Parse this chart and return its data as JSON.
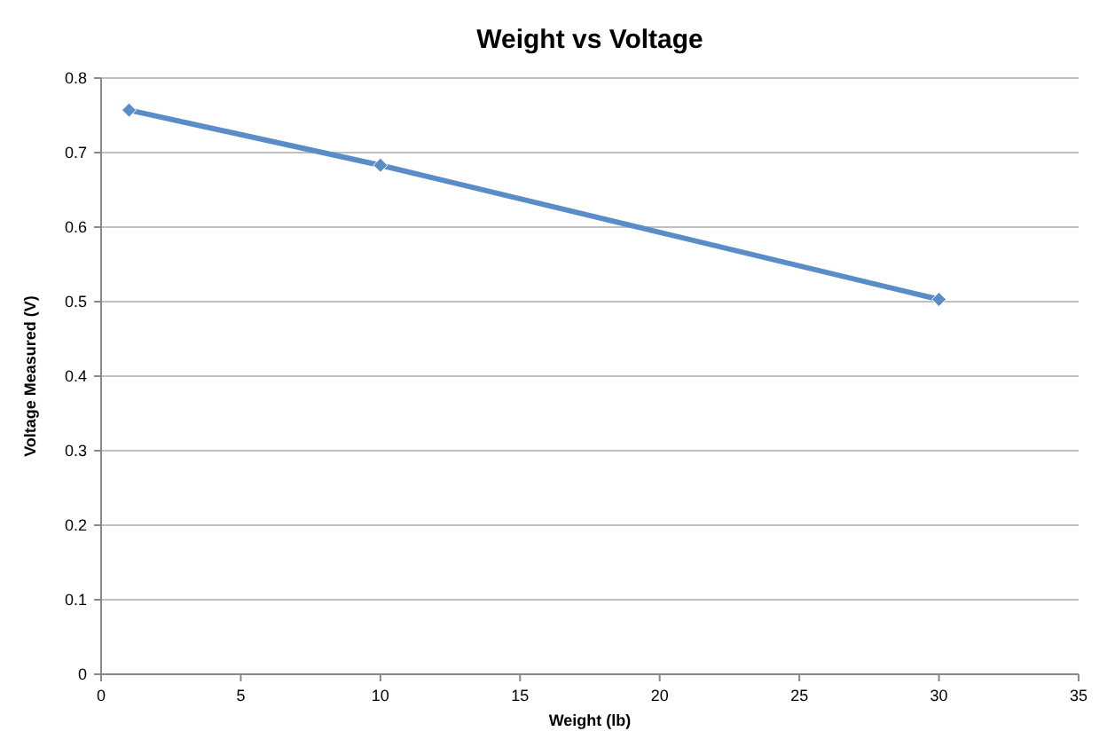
{
  "chart_data": {
    "type": "line",
    "title": "Weight vs Voltage",
    "xlabel": "Weight (lb)",
    "ylabel": "Voltage Measured (V)",
    "x": [
      1,
      10,
      30
    ],
    "series": [
      {
        "color": "#5a8dc8",
        "values": [
          0.757,
          0.683,
          0.503
        ]
      }
    ],
    "xlim": [
      0,
      35
    ],
    "xticks": [
      0,
      5,
      10,
      15,
      20,
      25,
      30,
      35
    ],
    "ylim": [
      0,
      0.8
    ],
    "yticks": [
      0,
      0.1,
      0.2,
      0.3,
      0.4,
      0.5,
      0.6,
      0.7,
      0.8
    ],
    "grid": "y",
    "marker": "diamond",
    "line_style": "solid"
  }
}
